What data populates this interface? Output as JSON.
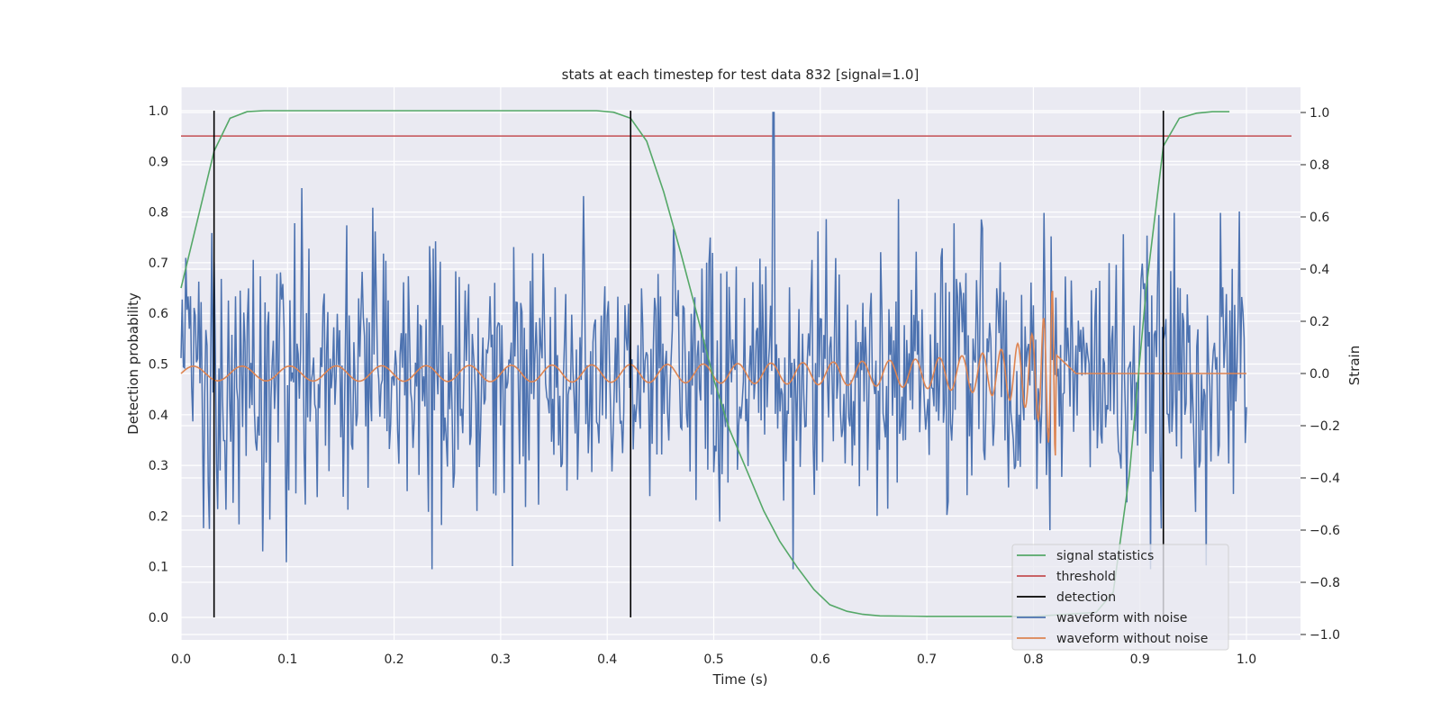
{
  "chart_data": {
    "type": "line",
    "title": "stats at each timestep for test data 832 [signal=1.0]",
    "xlabel": "Time (s)",
    "ylabel_left": "Detection probability",
    "ylabel_right": "Strain",
    "xlim": [
      0.0,
      1.05
    ],
    "ylim_left": [
      -0.05,
      1.05
    ],
    "ylim_right": [
      -1.05,
      1.1
    ],
    "x_ticks": [
      "0.0",
      "0.1",
      "0.2",
      "0.3",
      "0.4",
      "0.5",
      "0.6",
      "0.7",
      "0.8",
      "0.9",
      "1.0"
    ],
    "y_left_ticks": [
      "0.0",
      "0.1",
      "0.2",
      "0.3",
      "0.4",
      "0.5",
      "0.6",
      "0.7",
      "0.8",
      "0.9",
      "1.0"
    ],
    "y_right_ticks": [
      "−1.0",
      "−0.8",
      "−0.6",
      "−0.4",
      "−0.2",
      "0.0",
      "0.2",
      "0.4",
      "0.6",
      "0.8",
      "1.0"
    ],
    "grid": true,
    "background": "#eaeaf2",
    "legend_position": "lower-right",
    "legend": [
      {
        "label": "signal statistics",
        "color": "#55a868"
      },
      {
        "label": "threshold",
        "color": "#c44e52"
      },
      {
        "label": "detection",
        "color": "#000000"
      },
      {
        "label": "waveform with noise",
        "color": "#4c72b0"
      },
      {
        "label": "waveform without noise",
        "color": "#dd8452"
      }
    ],
    "threshold": 0.95,
    "detections": [
      0.031,
      0.422,
      0.922
    ],
    "signal_statistics": {
      "x": [
        0.0,
        0.015,
        0.031,
        0.046,
        0.062,
        0.078,
        0.1,
        0.2,
        0.3,
        0.39,
        0.406,
        0.422,
        0.437,
        0.453,
        0.469,
        0.484,
        0.5,
        0.515,
        0.531,
        0.547,
        0.562,
        0.578,
        0.594,
        0.609,
        0.625,
        0.64,
        0.656,
        0.7,
        0.8,
        0.859,
        0.875,
        0.89,
        0.906,
        0.922,
        0.937,
        0.953,
        0.968,
        0.984
      ],
      "y": [
        0.65,
        0.78,
        0.92,
        0.985,
        0.998,
        1.0,
        1.0,
        1.0,
        1.0,
        1.0,
        0.997,
        0.985,
        0.94,
        0.84,
        0.72,
        0.6,
        0.47,
        0.37,
        0.29,
        0.21,
        0.15,
        0.1,
        0.055,
        0.025,
        0.012,
        0.006,
        0.003,
        0.002,
        0.002,
        0.01,
        0.05,
        0.28,
        0.65,
        0.93,
        0.985,
        0.995,
        0.998,
        0.998
      ]
    },
    "waveform_without_noise": {
      "x_start": 0.0,
      "x_merger": 0.822,
      "x_end": 1.0,
      "strain_at_end": 0.0,
      "peak_strain": 0.33
    },
    "waveform_with_noise": {
      "x_range": [
        0.0,
        1.0
      ],
      "strain_range": [
        -0.75,
        1.0
      ],
      "notable_peak": {
        "x": 0.556,
        "strain": 1.0
      }
    }
  }
}
